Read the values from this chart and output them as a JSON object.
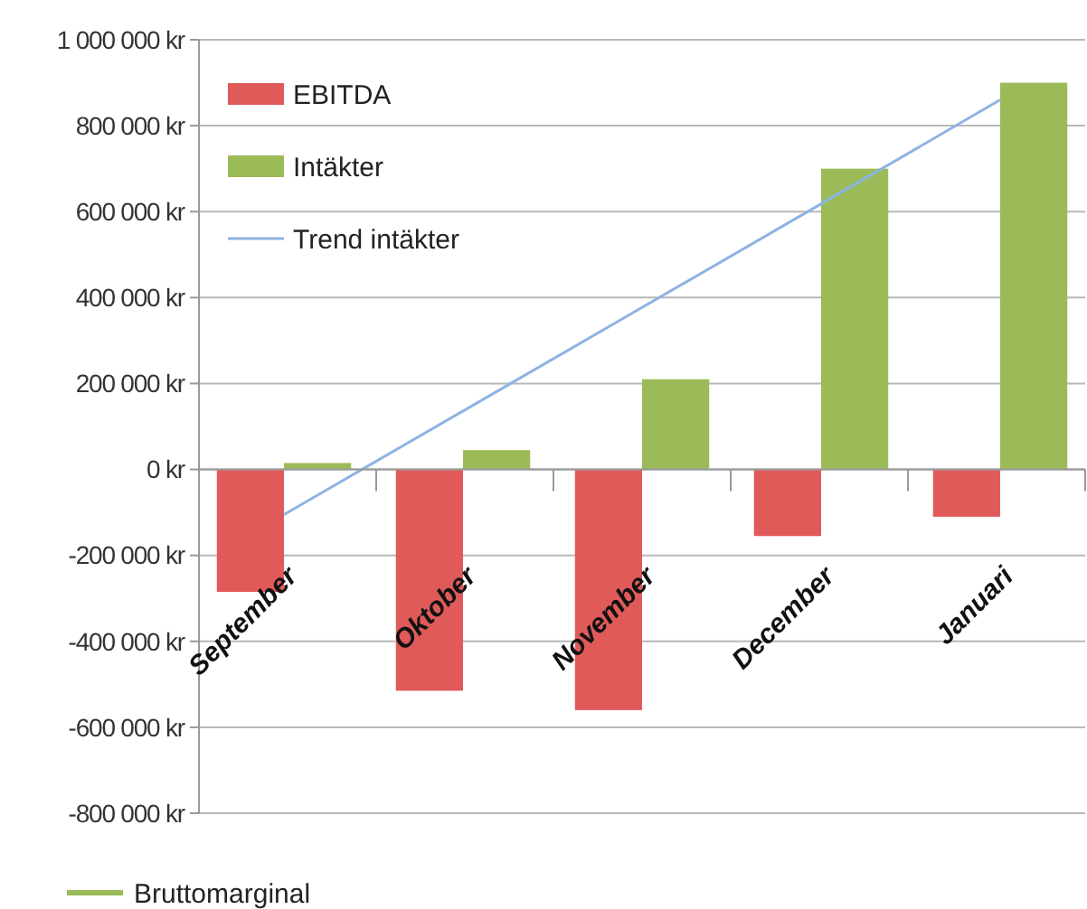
{
  "chart_data": {
    "type": "bar",
    "categories": [
      "September",
      "Oktober",
      "November",
      "December",
      "Januari"
    ],
    "series": [
      {
        "name": "EBITDA",
        "color": "#e05a5a",
        "values": [
          -285000,
          -515000,
          -560000,
          -155000,
          -110000
        ]
      },
      {
        "name": "Intäkter",
        "color": "#9bbb59",
        "values": [
          15000,
          45000,
          210000,
          700000,
          900000
        ]
      },
      {
        "name": "Trend intäkter",
        "type": "line",
        "color": "#8db3e2",
        "values": [
          -105000,
          136000,
          377000,
          618000,
          860000
        ]
      },
      {
        "name": "Bruttomarginal",
        "type": "line",
        "color": "#9bbb59",
        "values": [
          null,
          null,
          null,
          null,
          null
        ]
      }
    ],
    "ylim": [
      -800000,
      1000000
    ],
    "yticks": [
      {
        "value": -800000,
        "label": "-800 000 kr"
      },
      {
        "value": -600000,
        "label": "-600 000 kr"
      },
      {
        "value": -400000,
        "label": "-400 000 kr"
      },
      {
        "value": -200000,
        "label": "-200 000 kr"
      },
      {
        "value": 0,
        "label": "0 kr"
      },
      {
        "value": 200000,
        "label": "200 000 kr"
      },
      {
        "value": 400000,
        "label": "400 000 kr"
      },
      {
        "value": 600000,
        "label": "600 000 kr"
      },
      {
        "value": 800000,
        "label": "800 000 kr"
      },
      {
        "value": 1000000,
        "label": "1 000 000 kr"
      }
    ],
    "grid": "y",
    "legend": "left"
  }
}
